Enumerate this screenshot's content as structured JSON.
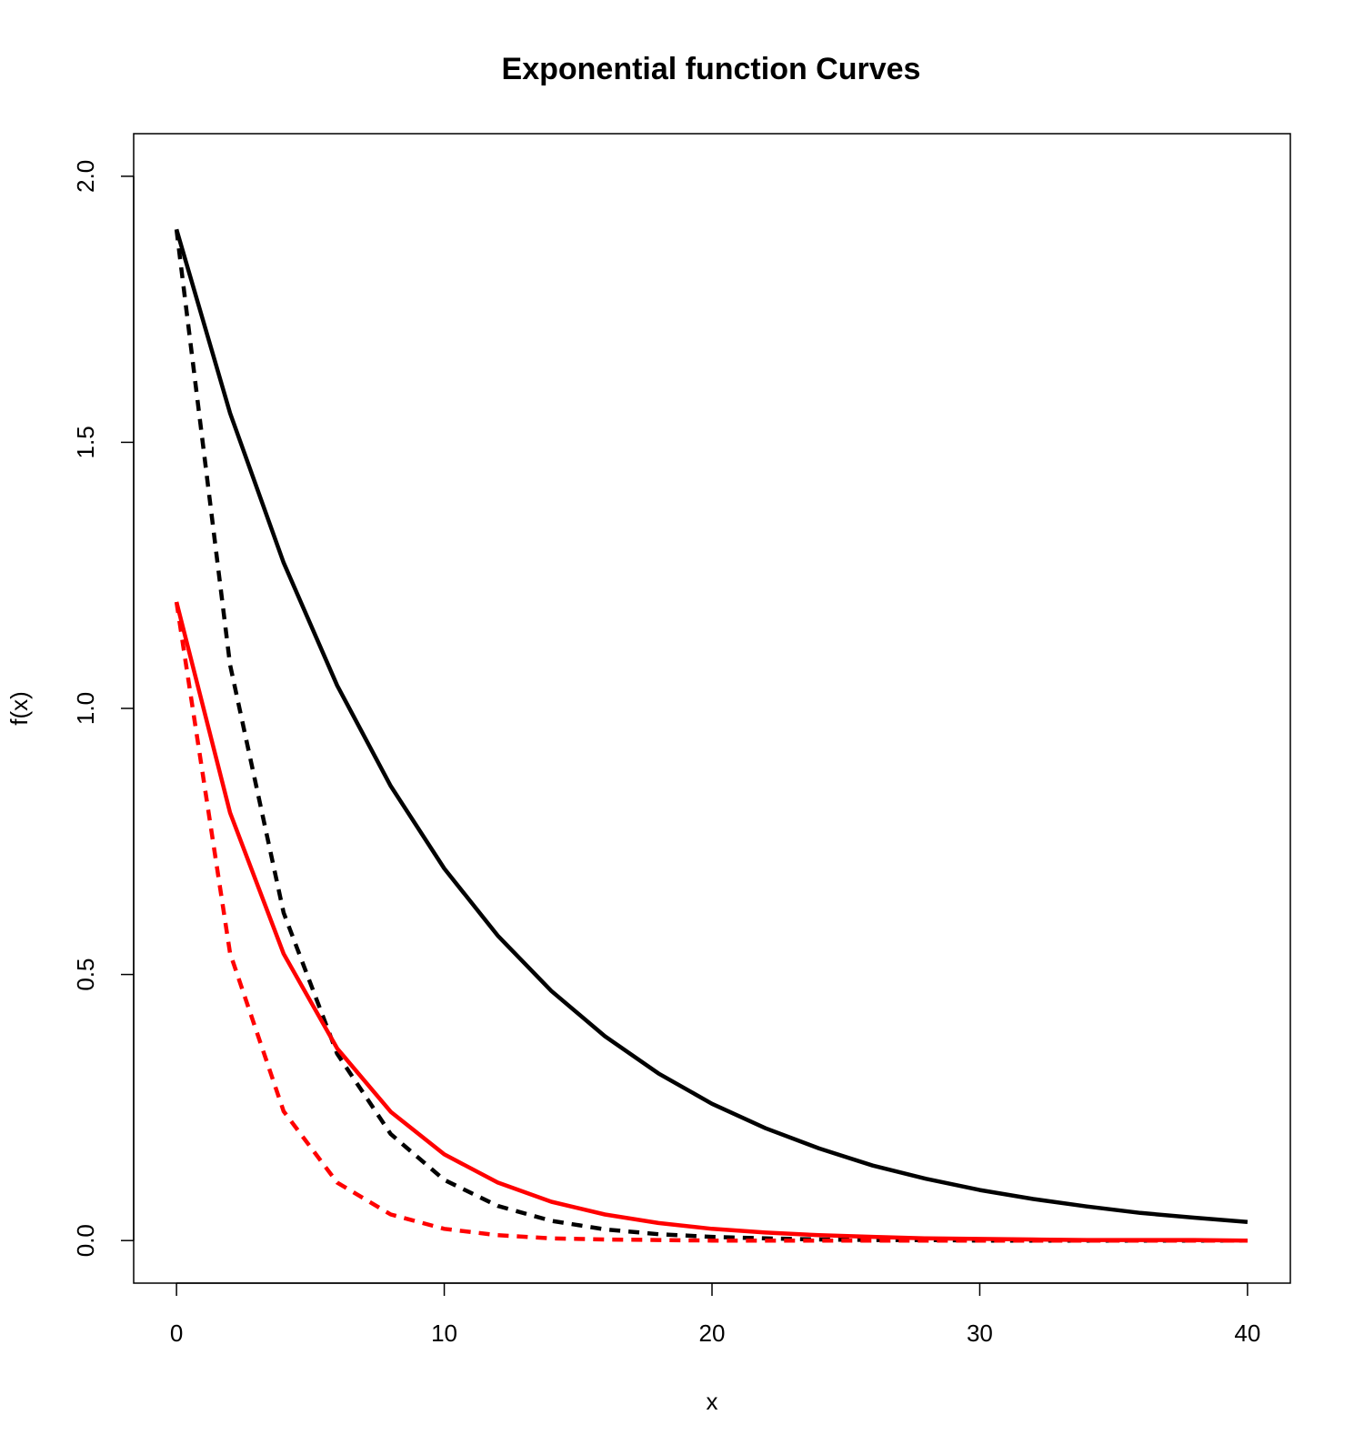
{
  "chart_data": {
    "type": "line",
    "title": "Exponential function Curves",
    "xlabel": "x",
    "ylabel": "f(x)",
    "xlim": [
      -1.6,
      41.6
    ],
    "ylim": [
      -0.08,
      2.08
    ],
    "x_ticks": [
      0,
      10,
      20,
      30,
      40
    ],
    "x_tick_labels": [
      "0",
      "10",
      "20",
      "30",
      "40"
    ],
    "y_ticks": [
      0.0,
      0.5,
      1.0,
      1.5,
      2.0
    ],
    "y_tick_labels": [
      "0.0",
      "0.5",
      "1.0",
      "1.5",
      "2.0"
    ],
    "grid": false,
    "legend": "none",
    "x": [
      0,
      2,
      4,
      6,
      8,
      10,
      12,
      14,
      16,
      18,
      20,
      22,
      24,
      26,
      28,
      30,
      32,
      34,
      36,
      38,
      40
    ],
    "series": [
      {
        "color": "#000000",
        "dash": "solid",
        "values": [
          1.9,
          1.555,
          1.274,
          1.043,
          0.854,
          0.699,
          0.573,
          0.469,
          0.384,
          0.314,
          0.257,
          0.211,
          0.173,
          0.141,
          0.116,
          0.095,
          0.078,
          0.064,
          0.052,
          0.043,
          0.035
        ]
      },
      {
        "color": "#000000",
        "dash": "dashed",
        "values": [
          1.9,
          1.082,
          0.616,
          0.351,
          0.2,
          0.114,
          0.065,
          0.037,
          0.021,
          0.012,
          0.007,
          0.004,
          0.002,
          0.001,
          0.001,
          0.0,
          0.0,
          0.0,
          0.0,
          0.0,
          0.0
        ]
      },
      {
        "color": "#ff0000",
        "dash": "solid",
        "values": [
          1.2,
          0.804,
          0.539,
          0.361,
          0.242,
          0.162,
          0.109,
          0.073,
          0.049,
          0.033,
          0.022,
          0.015,
          0.01,
          0.007,
          0.004,
          0.003,
          0.002,
          0.001,
          0.001,
          0.001,
          0.0
        ]
      },
      {
        "color": "#ff0000",
        "dash": "dashed",
        "values": [
          1.2,
          0.54,
          0.243,
          0.109,
          0.049,
          0.022,
          0.01,
          0.004,
          0.002,
          0.001,
          0.0,
          0.0,
          0.0,
          0.0,
          0.0,
          0.0,
          0.0,
          0.0,
          0.0,
          0.0,
          0.0
        ]
      }
    ]
  }
}
